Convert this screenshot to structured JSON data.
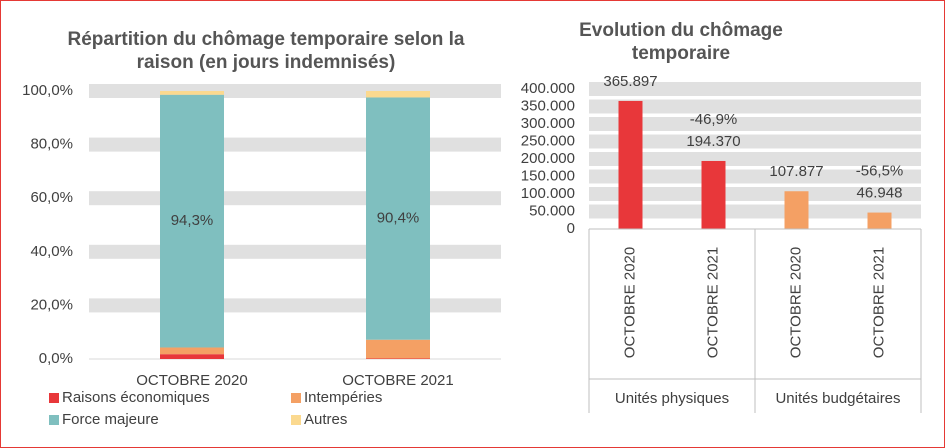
{
  "chart_data": [
    {
      "type": "stacked-bar",
      "title": "Répartition du chômage temporaire selon la raison (en jours indemnisés)",
      "categories": [
        "OCTOBRE 2020",
        "OCTOBRE 2021"
      ],
      "series": [
        {
          "name": "Raisons économiques",
          "color": "#e8373a",
          "values": [
            1.8,
            0.2
          ]
        },
        {
          "name": "Intempéries",
          "color": "#f4a064",
          "values": [
            2.5,
            7.0
          ]
        },
        {
          "name": "Force majeure",
          "color": "#7fbfbf",
          "values": [
            94.3,
            90.4
          ],
          "value_labels": [
            "94,3%",
            "90,4%"
          ]
        },
        {
          "name": "Autres",
          "color": "#fbd98f",
          "values": [
            1.4,
            2.4
          ]
        }
      ],
      "ylim": [
        0,
        100
      ],
      "yticks": [
        {
          "value": 0,
          "label": "0,0%"
        },
        {
          "value": 20,
          "label": "20,0%"
        },
        {
          "value": 40,
          "label": "40,0%"
        },
        {
          "value": 60,
          "label": "60,0%"
        },
        {
          "value": 80,
          "label": "80,0%"
        },
        {
          "value": 100,
          "label": "100,0%"
        }
      ],
      "grid": true
    },
    {
      "type": "bar",
      "title": "Evolution du chômage temporaire",
      "categories": [
        "OCTOBRE 2020",
        "OCTOBRE 2021",
        "OCTOBRE 2020",
        "OCTOBRE 2021"
      ],
      "groups": [
        "Unités physiques",
        "Unités budgétaires"
      ],
      "values": [
        365897,
        194370,
        107877,
        46948
      ],
      "value_labels": [
        "365.897",
        "194.370",
        "107.877",
        "46.948"
      ],
      "colors": [
        "#e8373a",
        "#e8373a",
        "#f4a064",
        "#f4a064"
      ],
      "annotations": [
        {
          "text": "-46,9%",
          "category": 1
        },
        {
          "text": "-56,5%",
          "category": 3
        }
      ],
      "ylim": [
        0,
        400000
      ],
      "yticks": [
        0,
        {
          "value": 50000,
          "label": "50.000"
        },
        {
          "value": 100000,
          "label": "100.000"
        },
        {
          "value": 150000,
          "label": "150.000"
        },
        {
          "value": 200000,
          "label": "200.000"
        },
        {
          "value": 250000,
          "label": "250.000"
        },
        {
          "value": 300000,
          "label": "300.000"
        },
        {
          "value": 350000,
          "label": "350.000"
        },
        {
          "value": 400000,
          "label": "400.000"
        }
      ],
      "grid": true
    }
  ]
}
